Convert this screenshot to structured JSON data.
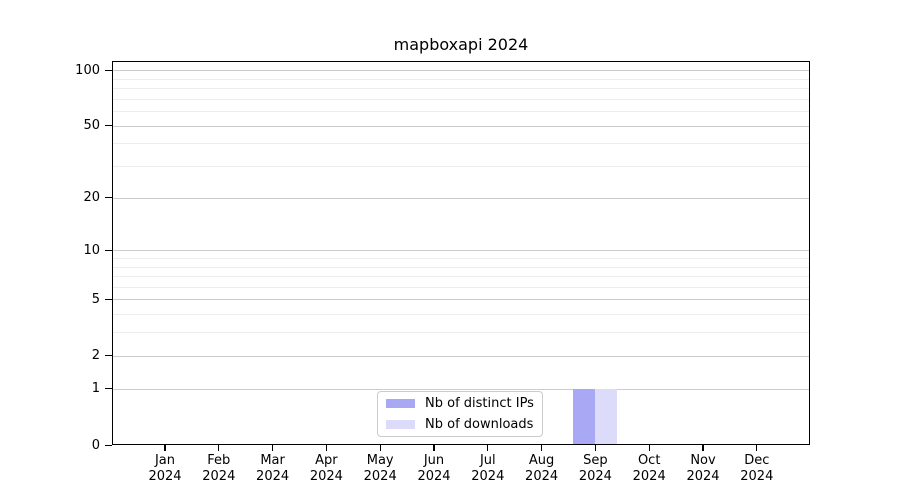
{
  "chart_data": {
    "type": "bar",
    "title": "mapboxapi 2024",
    "categories": [
      [
        "Jan",
        "2024"
      ],
      [
        "Feb",
        "2024"
      ],
      [
        "Mar",
        "2024"
      ],
      [
        "Apr",
        "2024"
      ],
      [
        "May",
        "2024"
      ],
      [
        "Jun",
        "2024"
      ],
      [
        "Jul",
        "2024"
      ],
      [
        "Aug",
        "2024"
      ],
      [
        "Sep",
        "2024"
      ],
      [
        "Oct",
        "2024"
      ],
      [
        "Nov",
        "2024"
      ],
      [
        "Dec",
        "2024"
      ]
    ],
    "series": [
      {
        "name": "Nb of distinct IPs",
        "color": "#a8a8f5",
        "values": [
          0,
          0,
          0,
          0,
          0,
          0,
          0,
          0,
          1,
          0,
          0,
          0
        ]
      },
      {
        "name": "Nb of downloads",
        "color": "#dcdcfa",
        "values": [
          0,
          0,
          0,
          0,
          0,
          0,
          0,
          0,
          1,
          0,
          0,
          0
        ]
      }
    ],
    "xlabel": "",
    "ylabel": "",
    "yscale": "log1p",
    "ylim": [
      0,
      110
    ],
    "y_major_ticks": [
      0,
      1,
      2,
      5,
      10,
      20,
      50,
      100
    ],
    "y_minor_gridlines": [
      3,
      4,
      6,
      7,
      8,
      9,
      30,
      40,
      60,
      70,
      80,
      90
    ],
    "grid": "both",
    "legend": {
      "position": "lower center"
    },
    "colors": {
      "axis": "#000000",
      "grid_major": "#cccccc",
      "grid_minor": "#ededed",
      "legend_border": "#cccccc",
      "text": "#000000"
    }
  }
}
